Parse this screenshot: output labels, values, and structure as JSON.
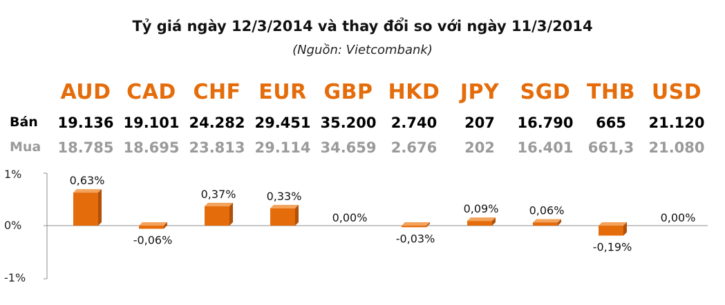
{
  "title": "Tỷ giá ngày 12/3/2014 và thay đổi so với ngày 11/3/2014",
  "subtitle": "(Nguồn: Vietcombank)",
  "row_labels": {
    "sell": "Bán",
    "buy": "Mua"
  },
  "currencies": [
    {
      "code": "AUD",
      "sell": "19.136",
      "buy": "18.785"
    },
    {
      "code": "CAD",
      "sell": "19.101",
      "buy": "18.695"
    },
    {
      "code": "CHF",
      "sell": "24.282",
      "buy": "23.813"
    },
    {
      "code": "EUR",
      "sell": "29.451",
      "buy": "29.114"
    },
    {
      "code": "GBP",
      "sell": "35.200",
      "buy": "34.659"
    },
    {
      "code": "HKD",
      "sell": "2.740",
      "buy": "2.676"
    },
    {
      "code": "JPY",
      "sell": "207",
      "buy": "202"
    },
    {
      "code": "SGD",
      "sell": "16.790",
      "buy": "16.401"
    },
    {
      "code": "THB",
      "sell": "665",
      "buy": "661,3"
    },
    {
      "code": "USD",
      "sell": "21.120",
      "buy": "21.080"
    }
  ],
  "colors": {
    "bar_main": "#e46c0a",
    "bar_dark": "#b0500a",
    "bar_light": "#f3a35c",
    "currency_text": "#e46c0a",
    "buy_text": "#9a9a9a"
  },
  "chart_data": {
    "type": "bar",
    "categories": [
      "AUD",
      "CAD",
      "CHF",
      "EUR",
      "GBP",
      "HKD",
      "JPY",
      "SGD",
      "THB",
      "USD"
    ],
    "values": [
      0.63,
      -0.06,
      0.37,
      0.33,
      0.0,
      -0.03,
      0.09,
      0.06,
      -0.19,
      0.0
    ],
    "data_labels": [
      "0,63%",
      "-0,06%",
      "0,37%",
      "0,33%",
      "0,00%",
      "-0,03%",
      "0,09%",
      "0,06%",
      "-0,19%",
      "0,00%"
    ],
    "y_ticks": [
      "1%",
      "0%",
      "-1%"
    ],
    "ylim": [
      -1,
      1
    ],
    "grid": false,
    "legend": "none"
  }
}
